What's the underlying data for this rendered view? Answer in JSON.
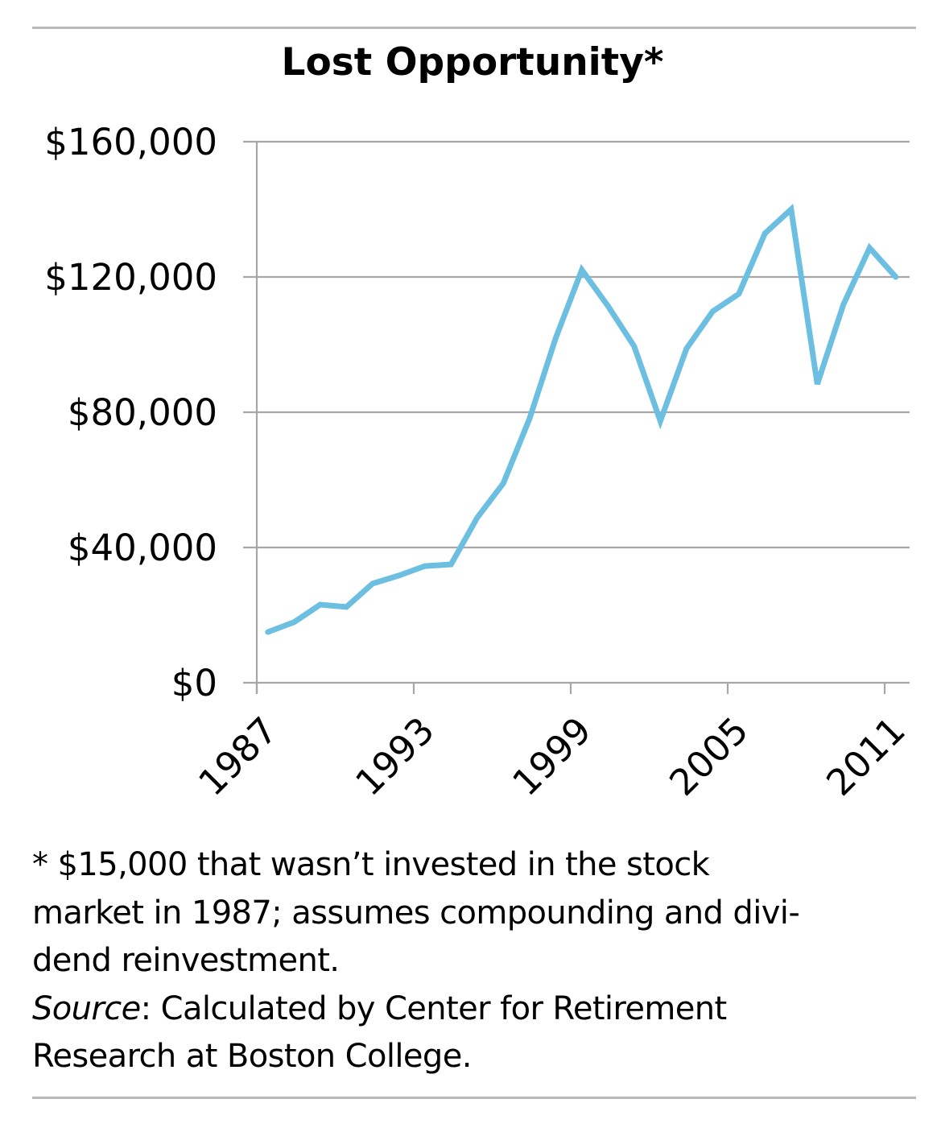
{
  "colors": {
    "line": "#6cbfe1",
    "grid": "#a6a6a6",
    "rule": "#b9b9b9",
    "text": "#000000"
  },
  "chart_data": {
    "type": "line",
    "title": "Lost Opportunity*",
    "xlabel": "",
    "ylabel": "",
    "x": [
      1987,
      1988,
      1989,
      1990,
      1991,
      1992,
      1993,
      1994,
      1995,
      1996,
      1997,
      1998,
      1999,
      2000,
      2001,
      2002,
      2003,
      2004,
      2005,
      2006,
      2007,
      2008,
      2009,
      2010,
      2011
    ],
    "series": [
      {
        "name": "Lost Opportunity",
        "values": [
          15000,
          17900,
          23100,
          22400,
          29300,
          31700,
          34500,
          35000,
          48800,
          59000,
          78100,
          101900,
          122100,
          111400,
          99500,
          77400,
          98800,
          109800,
          115000,
          132900,
          140000,
          88300,
          111900,
          128600,
          120000
        ]
      }
    ],
    "ylim": [
      0,
      160000
    ],
    "yticks": [
      0,
      40000,
      80000,
      120000,
      160000
    ],
    "ytick_labels": [
      "$0",
      "$40,000",
      "$80,000",
      "$120,000",
      "$160,000"
    ],
    "xticks": [
      1987,
      1993,
      1999,
      2005,
      2011
    ],
    "xtick_labels": [
      "1987",
      "1993",
      "1999",
      "2005",
      "2011"
    ],
    "grid": "horizontal",
    "legend": "none"
  },
  "footnote": {
    "note": "* $15,000 that wasn’t invested in the stock market in 1987; assumes compounding and divi-dend reinvestment.",
    "note_lines": [
      "* $15,000 that wasn’t invested in the stock",
      "market in 1987; assumes compounding and divi-",
      "dend reinvestment."
    ],
    "source_label": "Source",
    "source_text_lines": [
      ": Calculated by Center for Retirement",
      "Research at Boston College."
    ]
  }
}
